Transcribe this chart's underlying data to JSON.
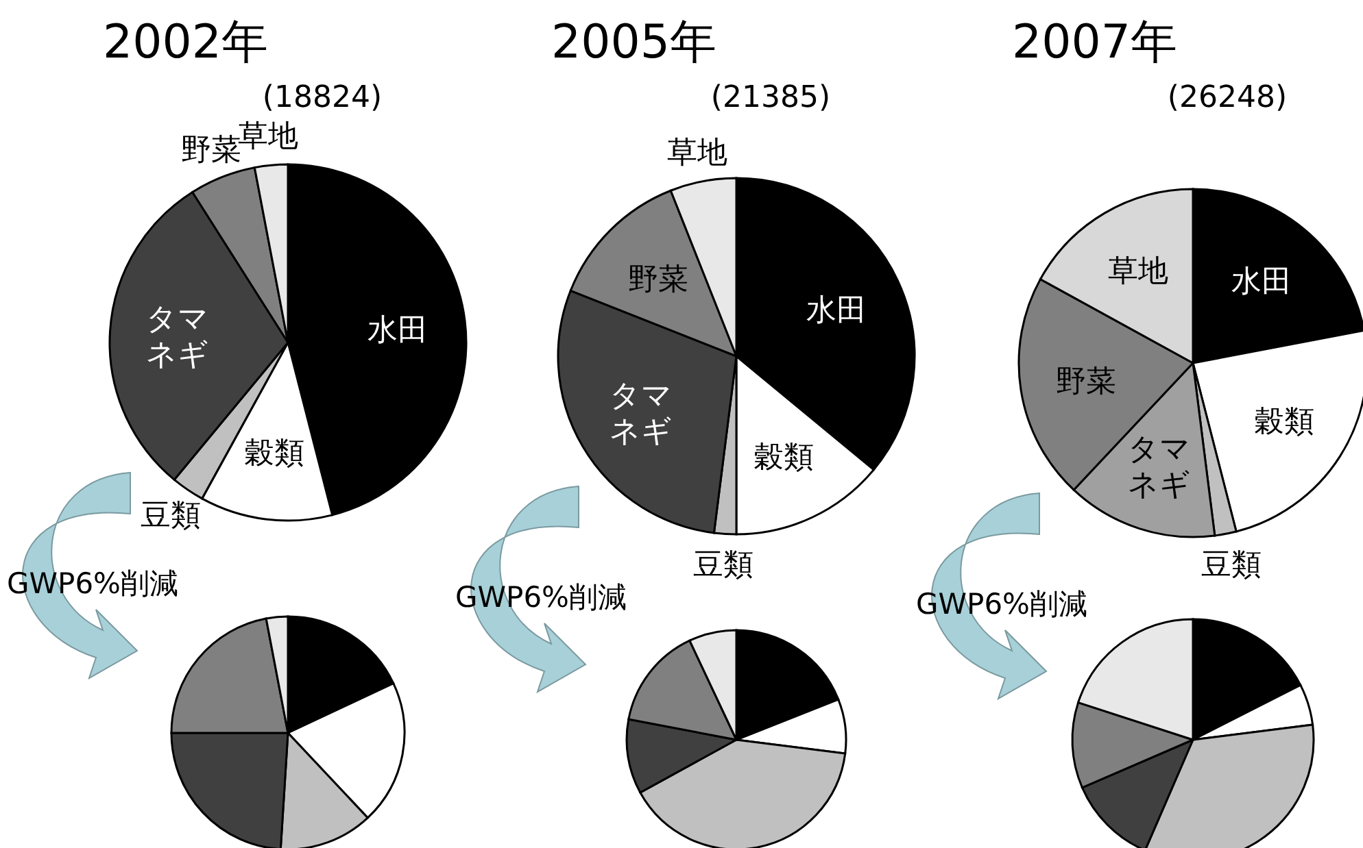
{
  "chart_data": [
    {
      "type": "pie",
      "title": "2002年",
      "subtitle": "(18824)",
      "annotations": [
        "GWP6%削減"
      ],
      "categories": [
        "水田",
        "穀類",
        "豆類",
        "タマネギ",
        "野菜",
        "草地"
      ],
      "values": [
        46,
        12,
        3,
        30,
        6,
        3
      ],
      "colors": [
        "#000000",
        "#ffffff",
        "#c0c0c0",
        "#404040",
        "#808080",
        "#e8e8e8"
      ]
    },
    {
      "type": "pie",
      "title": "2005年",
      "subtitle": "(21385)",
      "annotations": [
        "GWP6%削減"
      ],
      "categories": [
        "水田",
        "穀類",
        "豆類",
        "タマネギ",
        "野菜",
        "草地"
      ],
      "values": [
        36,
        14,
        2,
        29,
        13,
        6
      ],
      "colors": [
        "#000000",
        "#ffffff",
        "#c0c0c0",
        "#404040",
        "#808080",
        "#e8e8e8"
      ]
    },
    {
      "type": "pie",
      "title": "2007年",
      "subtitle": "(26248)",
      "annotations": [
        "GWP6%削減"
      ],
      "categories": [
        "水田",
        "穀類",
        "豆類",
        "タマネギ",
        "野菜",
        "草地"
      ],
      "values": [
        22,
        24,
        2,
        14,
        21,
        17
      ],
      "colors": [
        "#000000",
        "#ffffff",
        "#c0c0c0",
        "#a0a0a0",
        "#808080",
        "#d8d8d8"
      ]
    },
    {
      "type": "pie",
      "categories": [
        null,
        null,
        null,
        null,
        null,
        null
      ],
      "values": [
        18,
        20,
        13,
        24,
        22,
        3
      ],
      "colors": [
        "#000000",
        "#ffffff",
        "#c0c0c0",
        "#404040",
        "#808080",
        "#e8e8e8"
      ]
    },
    {
      "type": "pie",
      "categories": [
        null,
        null,
        null,
        null,
        null,
        null
      ],
      "values": [
        19,
        8,
        40,
        11,
        15,
        7
      ],
      "colors": [
        "#000000",
        "#ffffff",
        "#c0c0c0",
        "#404040",
        "#808080",
        "#e8e8e8"
      ]
    },
    {
      "type": "pie",
      "categories": [
        null,
        null,
        null,
        null,
        null,
        null
      ],
      "values": [
        17.5,
        5.5,
        33.5,
        12,
        11.5,
        20
      ],
      "colors": [
        "#000000",
        "#ffffff",
        "#c0c0c0",
        "#404040",
        "#808080",
        "#e8e8e8"
      ]
    }
  ]
}
